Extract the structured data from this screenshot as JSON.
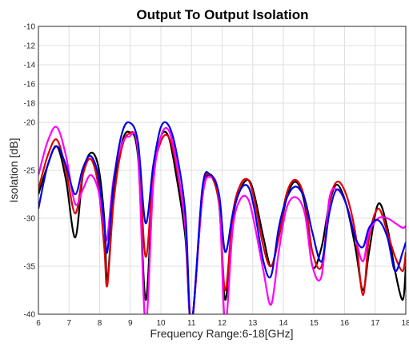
{
  "chart_data": {
    "type": "line",
    "title": "Output To Output Isolation",
    "xlabel": "Frequency Range:6-18[GHz]",
    "ylabel": "Isolation [dB]",
    "xlim": [
      6,
      18
    ],
    "ylim": [
      -40,
      -10
    ],
    "x_ticks": [
      "6",
      "7",
      "8",
      "9",
      "10",
      "11",
      "12",
      "13",
      "14",
      "15",
      "16",
      "17",
      "18"
    ],
    "y_ticks": [
      "-10",
      "-12",
      "-14",
      "-16",
      "-18",
      "-20",
      "-25",
      "-30",
      "-35",
      "-40"
    ],
    "grid": true,
    "series": [
      {
        "color": "#000000",
        "x": [
          6.0,
          6.3,
          6.6,
          6.9,
          7.2,
          7.45,
          7.7,
          7.95,
          8.15,
          8.25,
          8.45,
          8.7,
          8.95,
          9.25,
          9.5,
          9.75,
          10.0,
          10.25,
          10.5,
          10.8,
          11.0,
          11.35,
          11.6,
          11.9,
          12.1,
          12.35,
          12.6,
          12.85,
          13.05,
          13.35,
          13.6,
          13.85,
          14.1,
          14.4,
          14.7,
          14.95,
          15.25,
          15.5,
          15.75,
          16.05,
          16.35,
          16.6,
          16.8,
          17.1,
          17.4,
          17.65,
          17.9,
          18.0
        ],
        "values": [
          -27.5,
          -24.5,
          -22.5,
          -26.0,
          -32.0,
          -25.5,
          -23.2,
          -24.5,
          -30.0,
          -36.5,
          -28.0,
          -22.5,
          -21.0,
          -23.5,
          -38.5,
          -26.0,
          -21.5,
          -21.5,
          -25.5,
          -32.0,
          -40.0,
          -28.0,
          -25.5,
          -28.5,
          -38.5,
          -30.0,
          -27.0,
          -26.0,
          -27.5,
          -32.0,
          -35.0,
          -32.0,
          -28.0,
          -26.2,
          -28.5,
          -35.0,
          -33.0,
          -28.5,
          -26.5,
          -28.5,
          -33.0,
          -37.5,
          -33.5,
          -28.5,
          -31.0,
          -35.5,
          -38.5,
          -35.0
        ]
      },
      {
        "color": "#e00000",
        "x": [
          6.0,
          6.3,
          6.6,
          6.9,
          7.2,
          7.45,
          7.7,
          7.95,
          8.15,
          8.25,
          8.45,
          8.7,
          8.95,
          9.25,
          9.5,
          9.75,
          10.0,
          10.25,
          10.5,
          10.8,
          11.0,
          11.35,
          11.6,
          11.9,
          12.1,
          12.35,
          12.6,
          12.85,
          13.05,
          13.35,
          13.6,
          13.85,
          14.1,
          14.4,
          14.7,
          14.95,
          15.25,
          15.5,
          15.75,
          16.05,
          16.35,
          16.6,
          16.8,
          17.1,
          17.4,
          17.65,
          17.9,
          18.0
        ],
        "values": [
          -27.0,
          -23.5,
          -21.8,
          -25.0,
          -29.5,
          -25.5,
          -23.8,
          -26.5,
          -33.0,
          -37.0,
          -28.5,
          -23.0,
          -21.2,
          -22.5,
          -34.0,
          -25.5,
          -22.0,
          -21.5,
          -24.5,
          -31.0,
          -40.0,
          -27.5,
          -25.5,
          -28.5,
          -37.5,
          -29.5,
          -26.5,
          -26.0,
          -28.0,
          -33.0,
          -35.0,
          -32.0,
          -27.5,
          -26.0,
          -28.0,
          -33.5,
          -35.0,
          -28.5,
          -26.2,
          -27.5,
          -31.5,
          -38.0,
          -32.0,
          -29.0,
          -31.5,
          -34.0,
          -35.5,
          -33.5
        ]
      },
      {
        "color": "#ff00ff",
        "x": [
          6.0,
          6.3,
          6.6,
          6.9,
          7.2,
          7.45,
          7.7,
          7.95,
          8.15,
          8.25,
          8.45,
          8.7,
          8.95,
          9.25,
          9.5,
          9.75,
          10.0,
          10.25,
          10.5,
          10.8,
          11.0,
          11.35,
          11.6,
          11.9,
          12.1,
          12.35,
          12.6,
          12.85,
          13.05,
          13.35,
          13.6,
          13.85,
          14.1,
          14.4,
          14.7,
          14.95,
          15.25,
          15.5,
          15.75,
          16.05,
          16.35,
          16.6,
          16.8,
          17.1,
          17.4,
          17.65,
          17.9,
          18.0
        ],
        "values": [
          -25.5,
          -22.0,
          -20.5,
          -23.5,
          -28.5,
          -27.0,
          -25.5,
          -27.0,
          -31.0,
          -32.0,
          -26.0,
          -22.5,
          -21.5,
          -23.0,
          -40.0,
          -26.5,
          -21.5,
          -20.8,
          -24.0,
          -31.0,
          -40.0,
          -28.0,
          -25.7,
          -28.0,
          -40.0,
          -31.0,
          -28.0,
          -28.0,
          -30.5,
          -35.5,
          -39.0,
          -33.5,
          -29.0,
          -27.8,
          -29.5,
          -35.0,
          -36.0,
          -28.0,
          -27.0,
          -28.5,
          -32.0,
          -34.5,
          -31.5,
          -30.0,
          -30.0,
          -30.5,
          -31.0,
          -30.8
        ]
      },
      {
        "color": "#0000e6",
        "x": [
          6.0,
          6.3,
          6.6,
          6.9,
          7.2,
          7.45,
          7.7,
          7.95,
          8.15,
          8.25,
          8.45,
          8.7,
          8.95,
          9.25,
          9.5,
          9.75,
          10.0,
          10.25,
          10.5,
          10.8,
          11.0,
          11.35,
          11.6,
          11.9,
          12.1,
          12.35,
          12.6,
          12.85,
          13.05,
          13.35,
          13.6,
          13.85,
          14.1,
          14.4,
          14.7,
          14.95,
          15.25,
          15.5,
          15.75,
          16.05,
          16.35,
          16.6,
          16.8,
          17.1,
          17.4,
          17.65,
          17.9,
          18.0
        ],
        "values": [
          -29.0,
          -24.5,
          -22.5,
          -24.5,
          -27.5,
          -24.8,
          -23.5,
          -25.5,
          -30.5,
          -33.5,
          -26.5,
          -21.5,
          -20.0,
          -22.0,
          -30.5,
          -24.5,
          -20.5,
          -20.3,
          -23.0,
          -29.5,
          -40.0,
          -27.0,
          -25.4,
          -27.5,
          -33.5,
          -29.5,
          -27.0,
          -26.7,
          -29.0,
          -34.5,
          -36.0,
          -31.0,
          -28.0,
          -26.7,
          -28.0,
          -31.5,
          -34.5,
          -29.5,
          -27.0,
          -28.5,
          -32.0,
          -33.0,
          -31.0,
          -30.2,
          -32.0,
          -35.5,
          -33.5,
          -32.5
        ]
      }
    ]
  }
}
